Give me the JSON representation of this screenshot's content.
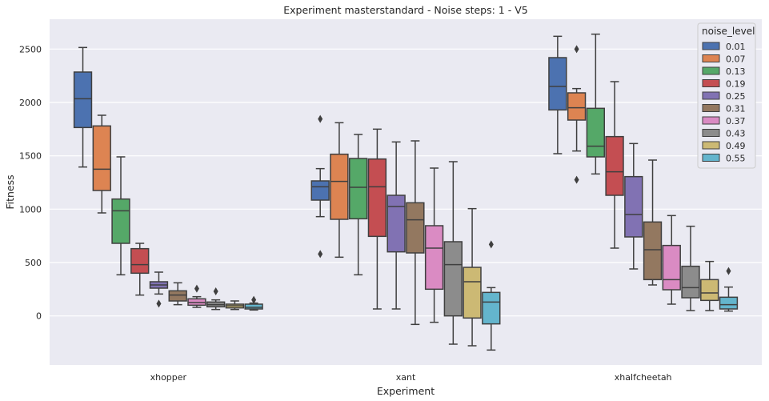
{
  "chart_data": {
    "type": "box",
    "title": "Experiment masterstandard - Noise steps: 1 - V5",
    "xlabel": "Experiment",
    "ylabel": "Fitness",
    "ylim": [
      -460,
      2780
    ],
    "yticks": [
      0,
      500,
      1000,
      1500,
      2000,
      2500
    ],
    "grid": true,
    "legend": {
      "title": "noise_level",
      "placement": "top-right"
    },
    "categories": [
      "xhopper",
      "xant",
      "xhalfcheetah"
    ],
    "series": [
      {
        "name": "0.01",
        "color": "#4c72b0",
        "boxes": [
          {
            "q1": 1765,
            "median": 2035,
            "q3": 2285,
            "whislo": 1395,
            "whishi": 2515,
            "fliers": []
          },
          {
            "q1": 1085,
            "median": 1210,
            "q3": 1265,
            "whislo": 930,
            "whishi": 1380,
            "fliers": [
              1845,
              580
            ]
          },
          {
            "q1": 1930,
            "median": 2150,
            "q3": 2420,
            "whislo": 1520,
            "whishi": 2620,
            "fliers": []
          }
        ]
      },
      {
        "name": "0.07",
        "color": "#dd8452",
        "boxes": [
          {
            "q1": 1175,
            "median": 1375,
            "q3": 1780,
            "whislo": 965,
            "whishi": 1880,
            "fliers": []
          },
          {
            "q1": 905,
            "median": 1260,
            "q3": 1515,
            "whislo": 550,
            "whishi": 1810,
            "fliers": []
          },
          {
            "q1": 1835,
            "median": 1950,
            "q3": 2090,
            "whislo": 1545,
            "whishi": 2130,
            "fliers": [
              2500,
              1275
            ]
          }
        ]
      },
      {
        "name": "0.13",
        "color": "#55a868",
        "boxes": [
          {
            "q1": 680,
            "median": 985,
            "q3": 1095,
            "whislo": 385,
            "whishi": 1490,
            "fliers": []
          },
          {
            "q1": 910,
            "median": 1205,
            "q3": 1475,
            "whislo": 385,
            "whishi": 1700,
            "fliers": []
          },
          {
            "q1": 1490,
            "median": 1590,
            "q3": 1945,
            "whislo": 1330,
            "whishi": 2640,
            "fliers": []
          }
        ]
      },
      {
        "name": "0.19",
        "color": "#c44e52",
        "boxes": [
          {
            "q1": 400,
            "median": 480,
            "q3": 630,
            "whislo": 195,
            "whishi": 680,
            "fliers": []
          },
          {
            "q1": 745,
            "median": 1210,
            "q3": 1470,
            "whislo": 65,
            "whishi": 1750,
            "fliers": []
          },
          {
            "q1": 1130,
            "median": 1350,
            "q3": 1680,
            "whislo": 635,
            "whishi": 2195,
            "fliers": []
          }
        ]
      },
      {
        "name": "0.25",
        "color": "#8172b3",
        "boxes": [
          {
            "q1": 260,
            "median": 290,
            "q3": 320,
            "whislo": 205,
            "whishi": 410,
            "fliers": [
              115
            ]
          },
          {
            "q1": 600,
            "median": 1025,
            "q3": 1130,
            "whislo": 65,
            "whishi": 1630,
            "fliers": []
          },
          {
            "q1": 740,
            "median": 950,
            "q3": 1305,
            "whislo": 440,
            "whishi": 1615,
            "fliers": []
          }
        ]
      },
      {
        "name": "0.31",
        "color": "#937860",
        "boxes": [
          {
            "q1": 140,
            "median": 195,
            "q3": 235,
            "whislo": 105,
            "whishi": 310,
            "fliers": []
          },
          {
            "q1": 590,
            "median": 900,
            "q3": 1060,
            "whislo": -80,
            "whishi": 1640,
            "fliers": []
          },
          {
            "q1": 340,
            "median": 620,
            "q3": 880,
            "whislo": 290,
            "whishi": 1460,
            "fliers": []
          }
        ]
      },
      {
        "name": "0.37",
        "color": "#da8bc3",
        "boxes": [
          {
            "q1": 100,
            "median": 125,
            "q3": 160,
            "whislo": 80,
            "whishi": 180,
            "fliers": [
              255
            ]
          },
          {
            "q1": 250,
            "median": 635,
            "q3": 845,
            "whislo": -60,
            "whishi": 1385,
            "fliers": []
          },
          {
            "q1": 245,
            "median": 340,
            "q3": 660,
            "whislo": 110,
            "whishi": 940,
            "fliers": []
          }
        ]
      },
      {
        "name": "0.43",
        "color": "#8c8c8c",
        "boxes": [
          {
            "q1": 85,
            "median": 105,
            "q3": 130,
            "whislo": 60,
            "whishi": 150,
            "fliers": [
              230
            ]
          },
          {
            "q1": 0,
            "median": 480,
            "q3": 695,
            "whislo": -265,
            "whishi": 1445,
            "fliers": []
          },
          {
            "q1": 170,
            "median": 265,
            "q3": 465,
            "whislo": 50,
            "whishi": 840,
            "fliers": []
          }
        ]
      },
      {
        "name": "0.49",
        "color": "#ccb974",
        "boxes": [
          {
            "q1": 75,
            "median": 95,
            "q3": 110,
            "whislo": 60,
            "whishi": 140,
            "fliers": []
          },
          {
            "q1": -20,
            "median": 320,
            "q3": 455,
            "whislo": -280,
            "whishi": 1005,
            "fliers": []
          },
          {
            "q1": 145,
            "median": 215,
            "q3": 340,
            "whislo": 50,
            "whishi": 510,
            "fliers": []
          }
        ]
      },
      {
        "name": "0.55",
        "color": "#64b5cd",
        "boxes": [
          {
            "q1": 65,
            "median": 80,
            "q3": 110,
            "whislo": 55,
            "whishi": 120,
            "fliers": [
              150
            ]
          },
          {
            "q1": -75,
            "median": 130,
            "q3": 220,
            "whislo": -320,
            "whishi": 265,
            "fliers": [
              670
            ]
          },
          {
            "q1": 65,
            "median": 105,
            "q3": 175,
            "whislo": 45,
            "whishi": 270,
            "fliers": [
              420
            ]
          }
        ]
      }
    ]
  }
}
